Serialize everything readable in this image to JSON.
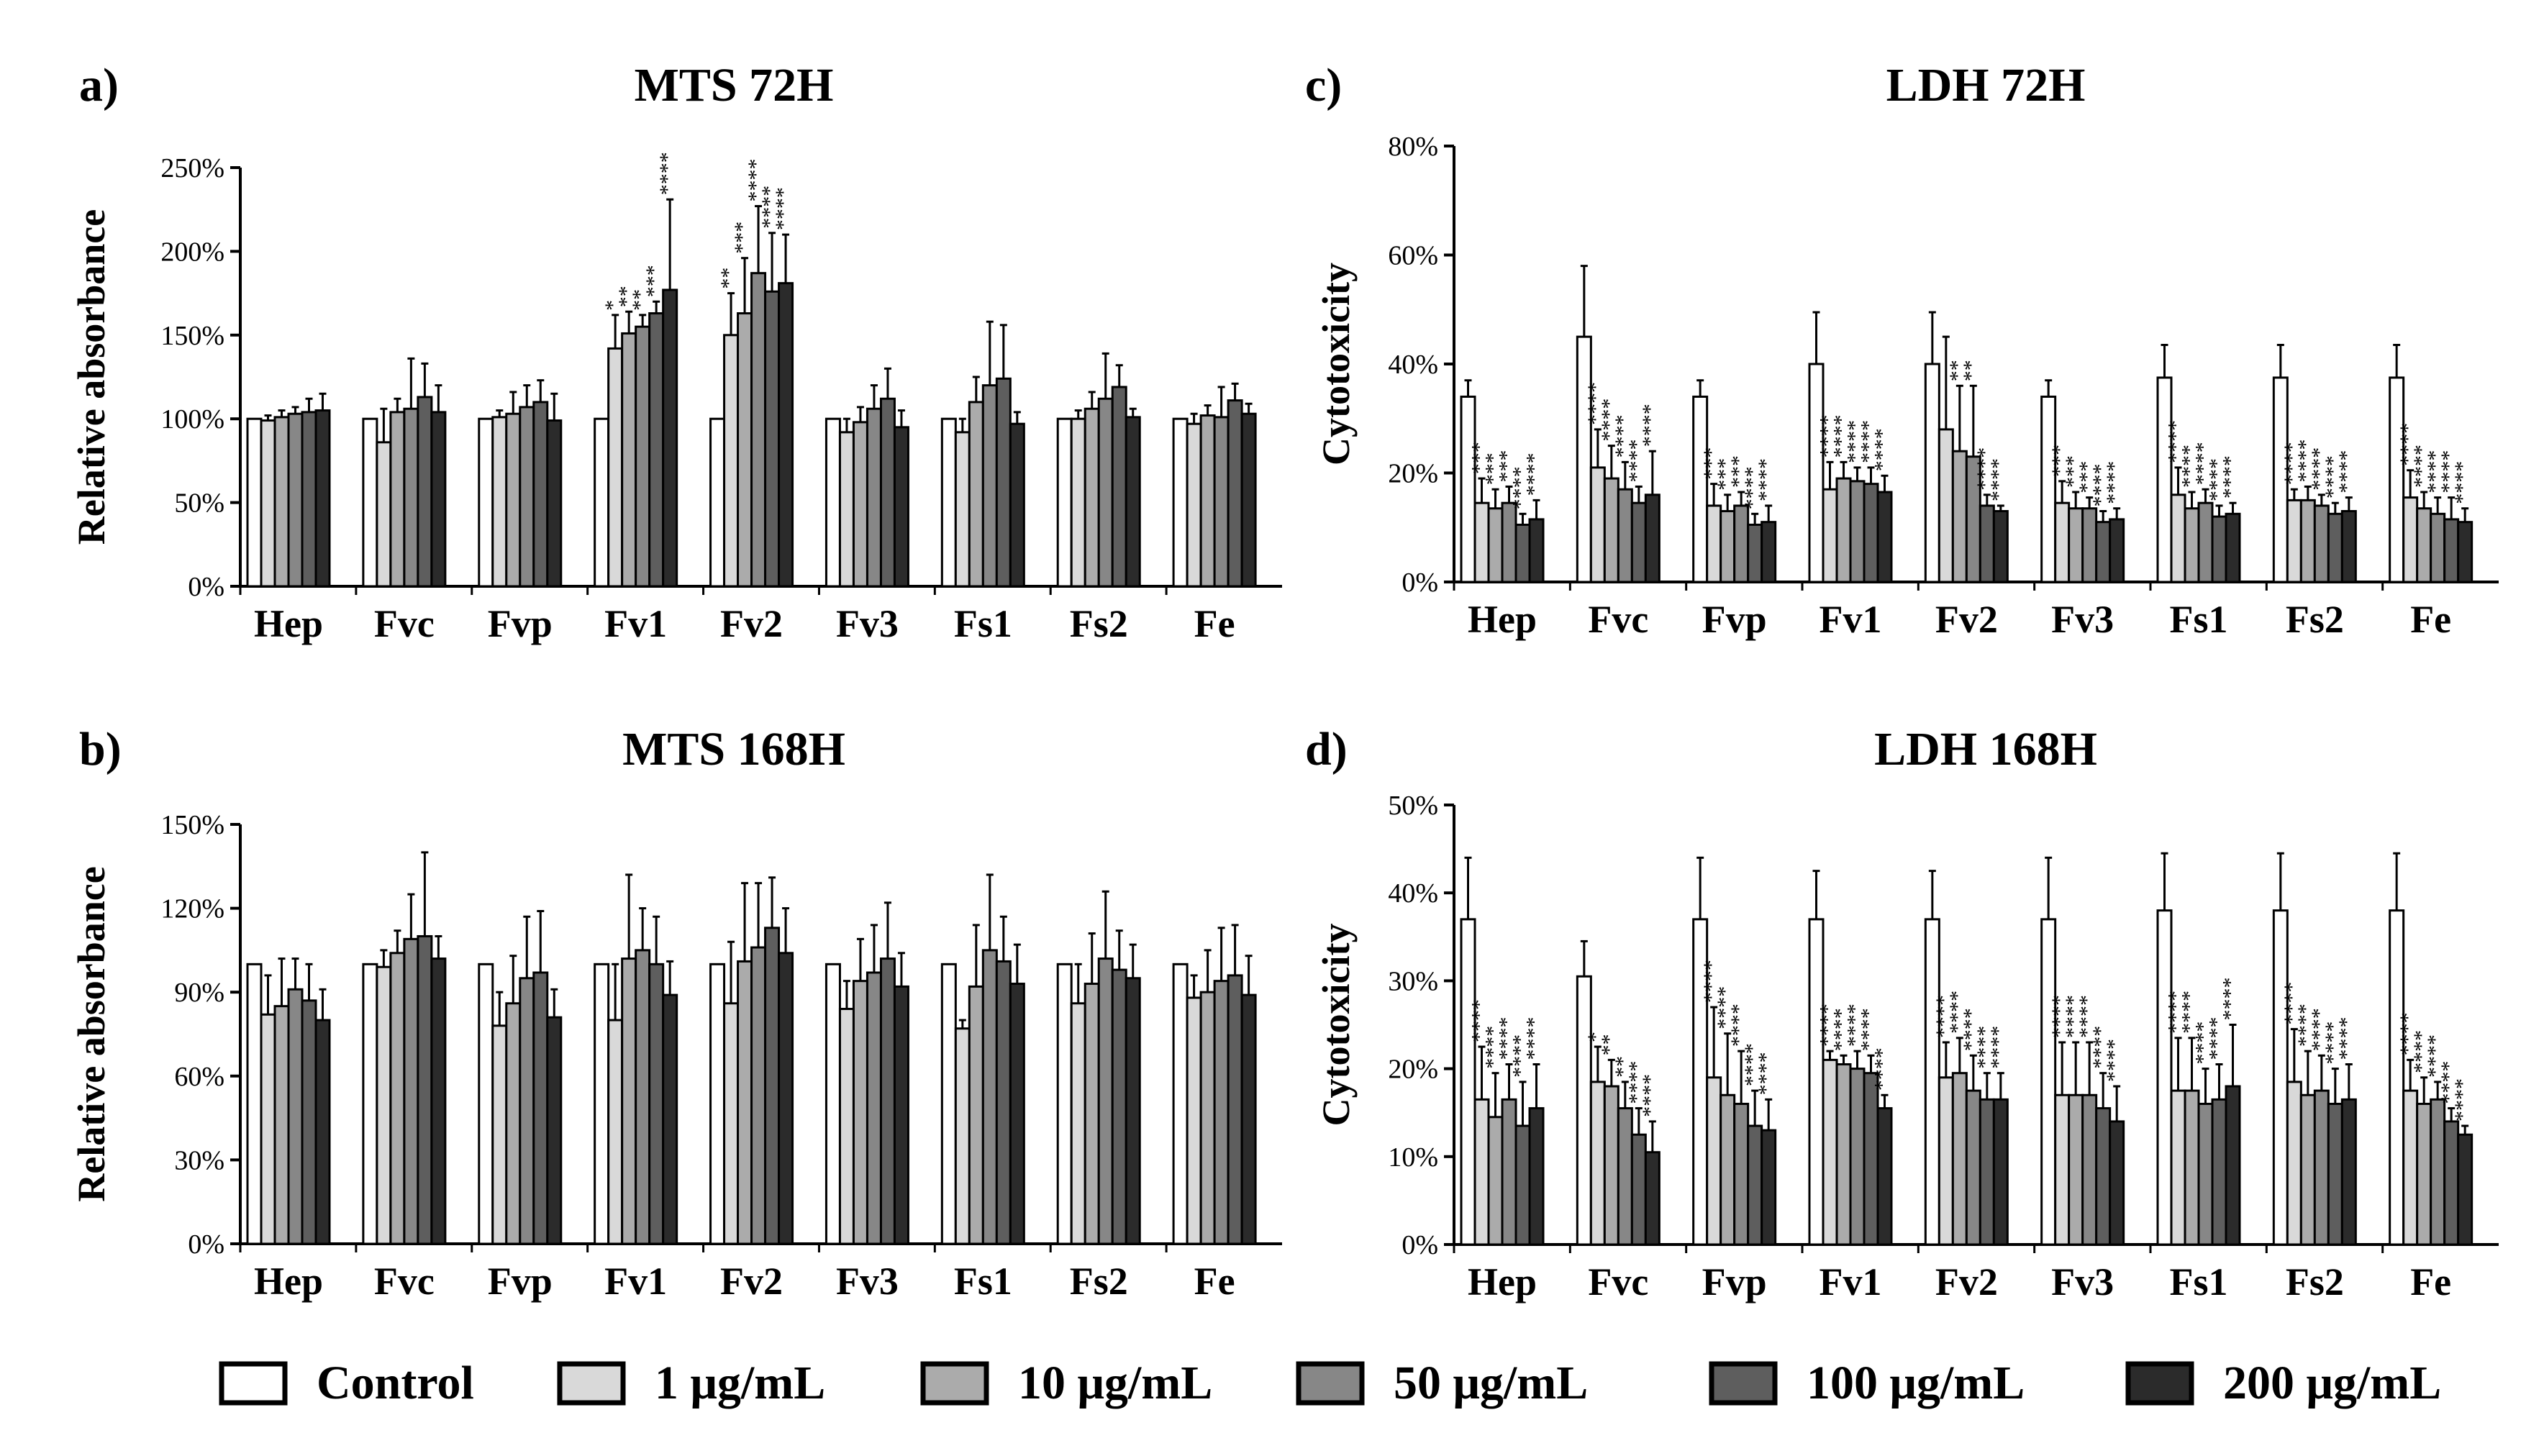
{
  "legend": {
    "items": [
      {
        "label": "Control",
        "color": "#ffffff"
      },
      {
        "label": "1 μg/mL",
        "color": "#d9d9d9"
      },
      {
        "label": "10 μg/mL",
        "color": "#ababab"
      },
      {
        "label": "50 μg/mL",
        "color": "#878787"
      },
      {
        "label": "100 μg/mL",
        "color": "#5e5e5e"
      },
      {
        "label": "200 μg/mL",
        "color": "#2b2b2b"
      }
    ]
  },
  "chart_data": [
    {
      "panel": "a)",
      "type": "bar",
      "title": "MTS 72H",
      "ylabel": "Relative absorbance",
      "xlabel": "",
      "ylim": [
        0,
        250
      ],
      "yticks": [
        "0%",
        "50%",
        "100%",
        "150%",
        "200%",
        "250%"
      ],
      "categories": [
        "Hep",
        "Fvc",
        "Fvp",
        "Fv1",
        "Fv2",
        "Fv3",
        "Fs1",
        "Fs2",
        "Fe"
      ],
      "series": [
        {
          "name": "Control",
          "values": [
            100,
            100,
            100,
            100,
            100,
            100,
            100,
            100,
            100
          ],
          "errors": [
            0,
            0,
            0,
            0,
            0,
            0,
            0,
            0,
            0
          ]
        },
        {
          "name": "1 μg/mL",
          "values": [
            99,
            86,
            101,
            142,
            150,
            92,
            92,
            100,
            97
          ],
          "errors": [
            3,
            20,
            4,
            20,
            25,
            8,
            8,
            5,
            6
          ]
        },
        {
          "name": "10 μg/mL",
          "values": [
            101,
            104,
            103,
            151,
            163,
            98,
            110,
            106,
            102
          ],
          "errors": [
            4,
            8,
            13,
            13,
            33,
            9,
            15,
            10,
            6
          ]
        },
        {
          "name": "50 μg/mL",
          "values": [
            103,
            106,
            107,
            155,
            187,
            106,
            120,
            112,
            101
          ],
          "errors": [
            4,
            30,
            13,
            7,
            40,
            14,
            38,
            27,
            18
          ]
        },
        {
          "name": "100 μg/mL",
          "values": [
            104,
            113,
            110,
            163,
            176,
            112,
            124,
            119,
            111
          ],
          "errors": [
            8,
            20,
            13,
            7,
            35,
            18,
            32,
            13,
            10
          ]
        },
        {
          "name": "200 μg/mL",
          "values": [
            105,
            104,
            99,
            177,
            181,
            95,
            97,
            101,
            103
          ],
          "errors": [
            10,
            16,
            16,
            54,
            29,
            10,
            7,
            5,
            6
          ]
        }
      ],
      "significance": [
        {
          "category": "Fv1",
          "marks": [
            "",
            "*",
            "**",
            "**",
            "***",
            "****"
          ]
        },
        {
          "category": "Fv2",
          "marks": [
            "",
            "**",
            "***",
            "****",
            "****",
            "****"
          ]
        }
      ]
    },
    {
      "panel": "b)",
      "type": "bar",
      "title": "MTS 168H",
      "ylabel": "Relative absorbance",
      "xlabel": "",
      "ylim": [
        0,
        150
      ],
      "yticks": [
        "0%",
        "30%",
        "60%",
        "90%",
        "120%",
        "150%"
      ],
      "categories": [
        "Hep",
        "Fvc",
        "Fvp",
        "Fv1",
        "Fv2",
        "Fv3",
        "Fs1",
        "Fs2",
        "Fe"
      ],
      "series": [
        {
          "name": "Control",
          "values": [
            100,
            100,
            100,
            100,
            100,
            100,
            100,
            100,
            100
          ],
          "errors": [
            0,
            0,
            0,
            0,
            0,
            0,
            0,
            0,
            0
          ]
        },
        {
          "name": "1 μg/mL",
          "values": [
            82,
            99,
            78,
            80,
            86,
            84,
            77,
            86,
            88
          ],
          "errors": [
            14,
            6,
            12,
            20,
            22,
            10,
            3,
            14,
            8
          ]
        },
        {
          "name": "10 μg/mL",
          "values": [
            85,
            104,
            86,
            102,
            101,
            94,
            92,
            93,
            90
          ],
          "errors": [
            17,
            8,
            17,
            30,
            28,
            15,
            22,
            18,
            15
          ]
        },
        {
          "name": "50 μg/mL",
          "values": [
            91,
            109,
            95,
            105,
            106,
            97,
            105,
            102,
            94
          ],
          "errors": [
            11,
            16,
            22,
            15,
            23,
            17,
            27,
            24,
            19
          ]
        },
        {
          "name": "100 μg/mL",
          "values": [
            87,
            110,
            97,
            100,
            113,
            102,
            101,
            98,
            96
          ],
          "errors": [
            13,
            30,
            22,
            17,
            18,
            20,
            16,
            14,
            18
          ]
        },
        {
          "name": "200 μg/mL",
          "values": [
            80,
            102,
            81,
            89,
            104,
            92,
            93,
            95,
            89
          ],
          "errors": [
            11,
            8,
            10,
            12,
            16,
            12,
            14,
            12,
            14
          ]
        }
      ]
    },
    {
      "panel": "c)",
      "type": "bar",
      "title": "LDH 72H",
      "ylabel": "Cytotoxicity",
      "xlabel": "",
      "ylim": [
        0,
        80
      ],
      "yticks": [
        "0%",
        "20%",
        "40%",
        "60%",
        "80%"
      ],
      "categories": [
        "Hep",
        "Fvc",
        "Fvp",
        "Fv1",
        "Fv2",
        "Fv3",
        "Fs1",
        "Fs2",
        "Fe"
      ],
      "series": [
        {
          "name": "Control",
          "values": [
            34,
            45,
            34,
            40,
            40,
            34,
            37.5,
            37.5,
            37.5
          ],
          "errors": [
            3,
            13,
            3,
            9.5,
            9.5,
            3,
            6,
            6,
            6
          ]
        },
        {
          "name": "1 μg/mL",
          "values": [
            14.5,
            21,
            14,
            17,
            28,
            14.5,
            16,
            15,
            15.5
          ],
          "errors": [
            4.5,
            7,
            4,
            5,
            17,
            4,
            5,
            2,
            5
          ]
        },
        {
          "name": "10 μg/mL",
          "values": [
            13.5,
            19,
            13,
            19,
            24,
            13.5,
            13.5,
            15,
            13.5
          ],
          "errors": [
            3.5,
            6,
            3,
            3,
            12,
            3,
            3,
            2.5,
            3
          ]
        },
        {
          "name": "50 μg/mL",
          "values": [
            14.5,
            17,
            14,
            18.5,
            23,
            13.5,
            14.5,
            14,
            12.5
          ],
          "errors": [
            3,
            5,
            2.5,
            2.5,
            13,
            2,
            2.5,
            2,
            3
          ]
        },
        {
          "name": "100 μg/mL",
          "values": [
            10.5,
            14.5,
            10.5,
            18,
            14,
            11,
            12,
            12.5,
            11.5
          ],
          "errors": [
            2,
            3,
            2,
            3,
            2,
            2,
            2,
            2,
            4
          ]
        },
        {
          "name": "200 μg/mL",
          "values": [
            11.5,
            16,
            11,
            16.5,
            13,
            11.5,
            12.5,
            13,
            11
          ],
          "errors": [
            3.5,
            8,
            3,
            3,
            1,
            2,
            2,
            2.5,
            2.5
          ]
        }
      ],
      "significance": [
        {
          "category": "Hep",
          "marks": [
            "",
            "***",
            "***",
            "***",
            "****",
            "****"
          ]
        },
        {
          "category": "Fvc",
          "marks": [
            "",
            "****",
            "****",
            "****",
            "****",
            "****"
          ]
        },
        {
          "category": "Fvp",
          "marks": [
            "",
            "***",
            "***",
            "***",
            "****",
            "****"
          ]
        },
        {
          "category": "Fv1",
          "marks": [
            "",
            "****",
            "****",
            "****",
            "****",
            "****"
          ]
        },
        {
          "category": "Fv2",
          "marks": [
            "",
            "",
            "**",
            "**",
            "****",
            "****"
          ]
        },
        {
          "category": "Fv3",
          "marks": [
            "",
            "***",
            "***",
            "***",
            "****",
            "****"
          ]
        },
        {
          "category": "Fs1",
          "marks": [
            "",
            "****",
            "****",
            "****",
            "****",
            "****"
          ]
        },
        {
          "category": "Fs2",
          "marks": [
            "",
            "****",
            "****",
            "****",
            "****",
            "****"
          ]
        },
        {
          "category": "Fe",
          "marks": [
            "",
            "****",
            "****",
            "****",
            "****",
            "****"
          ]
        }
      ]
    },
    {
      "panel": "d)",
      "type": "bar",
      "title": "LDH 168H",
      "ylabel": "Cytotoxicity",
      "xlabel": "",
      "ylim": [
        0,
        50
      ],
      "yticks": [
        "0%",
        "10%",
        "20%",
        "30%",
        "40%",
        "50%"
      ],
      "categories": [
        "Hep",
        "Fvc",
        "Fvp",
        "Fv1",
        "Fv2",
        "Fv3",
        "Fs1",
        "Fs2",
        "Fe"
      ],
      "series": [
        {
          "name": "Control",
          "values": [
            37,
            30.5,
            37,
            37,
            37,
            37,
            38,
            38,
            38
          ],
          "errors": [
            7,
            4,
            7,
            5.5,
            5.5,
            7,
            6.5,
            6.5,
            6.5
          ]
        },
        {
          "name": "1 μg/mL",
          "values": [
            16.5,
            18.5,
            19,
            21,
            19,
            17,
            17.5,
            18.5,
            17.5
          ],
          "errors": [
            6,
            4,
            8,
            1,
            4,
            6,
            6,
            6,
            3.5
          ]
        },
        {
          "name": "10 μg/mL",
          "values": [
            14.5,
            18,
            17,
            20.5,
            19.5,
            17,
            17.5,
            17,
            16
          ],
          "errors": [
            5,
            3,
            7,
            1,
            4,
            6,
            6,
            5,
            3
          ]
        },
        {
          "name": "50 μg/mL",
          "values": [
            16.5,
            15.5,
            16,
            20,
            17.5,
            17,
            16,
            17.5,
            16.5
          ],
          "errors": [
            4,
            3,
            6,
            2,
            4,
            6,
            4,
            4,
            2
          ]
        },
        {
          "name": "100 μg/mL",
          "values": [
            13.5,
            12.5,
            13.5,
            19.5,
            16.5,
            15.5,
            16.5,
            16,
            14
          ],
          "errors": [
            5,
            3,
            4,
            2,
            3,
            4,
            4,
            4,
            1.5
          ]
        },
        {
          "name": "200 μg/mL",
          "values": [
            15.5,
            10.5,
            13,
            15.5,
            16.5,
            14,
            18,
            16.5,
            12.5
          ],
          "errors": [
            5,
            3.5,
            3.5,
            1.5,
            3,
            4,
            7,
            4,
            1
          ]
        }
      ],
      "significance": [
        {
          "category": "Hep",
          "marks": [
            "",
            "****",
            "****",
            "****",
            "****",
            "****"
          ]
        },
        {
          "category": "Fvc",
          "marks": [
            "",
            "*",
            "**",
            "**",
            "****",
            "****"
          ]
        },
        {
          "category": "Fvp",
          "marks": [
            "",
            "****",
            "****",
            "****",
            "****",
            "****"
          ]
        },
        {
          "category": "Fv1",
          "marks": [
            "",
            "****",
            "****",
            "****",
            "****",
            "****"
          ]
        },
        {
          "category": "Fv2",
          "marks": [
            "",
            "****",
            "****",
            "****",
            "****",
            "****"
          ]
        },
        {
          "category": "Fv3",
          "marks": [
            "",
            "****",
            "****",
            "****",
            "****",
            "****"
          ]
        },
        {
          "category": "Fs1",
          "marks": [
            "",
            "****",
            "****",
            "****",
            "****",
            "****"
          ]
        },
        {
          "category": "Fs2",
          "marks": [
            "",
            "****",
            "****",
            "****",
            "****",
            "****"
          ]
        },
        {
          "category": "Fe",
          "marks": [
            "",
            "****",
            "****",
            "****",
            "****",
            "****"
          ]
        }
      ]
    }
  ]
}
